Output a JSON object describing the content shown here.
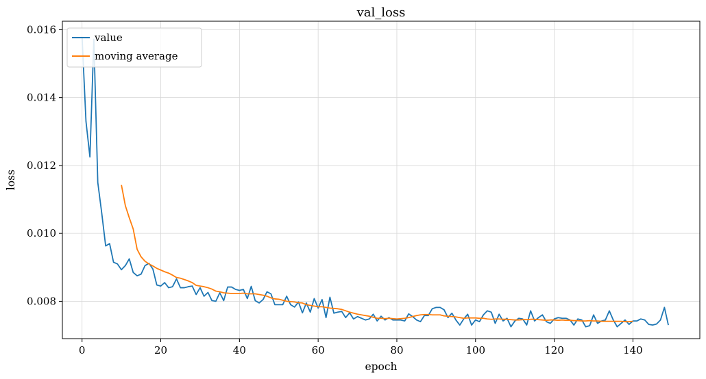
{
  "chart_data": {
    "type": "line",
    "title": "val_loss",
    "xlabel": "epoch",
    "ylabel": "loss",
    "xlim": [
      -5,
      157
    ],
    "ylim": [
      0.0069,
      0.01625
    ],
    "xticks": [
      0,
      20,
      40,
      60,
      80,
      100,
      120,
      140
    ],
    "xtick_labels": [
      "0",
      "20",
      "40",
      "60",
      "80",
      "100",
      "120",
      "140"
    ],
    "yticks": [
      0.008,
      0.01,
      0.012,
      0.014,
      0.016
    ],
    "ytick_labels": [
      "0.008",
      "0.010",
      "0.012",
      "0.014",
      "0.016"
    ],
    "grid": true,
    "legend_position": "top-left",
    "series": [
      {
        "name": "value",
        "color": "#1f77b4",
        "x_start": 0,
        "values": [
          0.0158,
          0.0133,
          0.01225,
          0.01572,
          0.0115,
          0.0106,
          0.00963,
          0.0097,
          0.00915,
          0.0091,
          0.00893,
          0.00905,
          0.00925,
          0.00885,
          0.00875,
          0.0088,
          0.00905,
          0.00912,
          0.00895,
          0.00848,
          0.00845,
          0.00855,
          0.0084,
          0.00843,
          0.00866,
          0.0084,
          0.0084,
          0.00843,
          0.00845,
          0.0082,
          0.0084,
          0.00815,
          0.00826,
          0.00802,
          0.008,
          0.00825,
          0.00802,
          0.00842,
          0.00842,
          0.00835,
          0.00832,
          0.00835,
          0.00808,
          0.00844,
          0.00802,
          0.00795,
          0.00805,
          0.00828,
          0.00822,
          0.0079,
          0.0079,
          0.0079,
          0.00815,
          0.0079,
          0.00783,
          0.00798,
          0.00766,
          0.00795,
          0.00768,
          0.00808,
          0.0078,
          0.00805,
          0.00752,
          0.00812,
          0.00765,
          0.00768,
          0.0077,
          0.00752,
          0.00766,
          0.00748,
          0.00755,
          0.0075,
          0.00745,
          0.00748,
          0.00762,
          0.00742,
          0.00756,
          0.00745,
          0.00752,
          0.00745,
          0.00745,
          0.00745,
          0.00742,
          0.00763,
          0.00755,
          0.00745,
          0.0074,
          0.00758,
          0.00758,
          0.00778,
          0.00782,
          0.00782,
          0.00775,
          0.00752,
          0.00765,
          0.00745,
          0.0073,
          0.00748,
          0.00762,
          0.0073,
          0.00745,
          0.0074,
          0.0076,
          0.00772,
          0.00768,
          0.00735,
          0.00762,
          0.00742,
          0.0075,
          0.00725,
          0.00742,
          0.0075,
          0.00748,
          0.0073,
          0.00772,
          0.00742,
          0.00752,
          0.0076,
          0.0074,
          0.00735,
          0.00748,
          0.00752,
          0.0075,
          0.0075,
          0.00745,
          0.0073,
          0.00748,
          0.00745,
          0.00725,
          0.00728,
          0.0076,
          0.00735,
          0.00742,
          0.00745,
          0.00772,
          0.00745,
          0.00725,
          0.00735,
          0.00745,
          0.00732,
          0.00742,
          0.00742,
          0.00748,
          0.00745,
          0.00732,
          0.0073,
          0.00733,
          0.00745,
          0.00782,
          0.0073
        ]
      },
      {
        "name": "moving average",
        "color": "#ff7f0e",
        "x_start": 10,
        "values": [
          0.01143,
          0.01082,
          0.01046,
          0.01013,
          0.00953,
          0.00931,
          0.00918,
          0.0091,
          0.00904,
          0.00897,
          0.00892,
          0.00887,
          0.00883,
          0.00877,
          0.0087,
          0.00868,
          0.00864,
          0.0086,
          0.00855,
          0.00847,
          0.00845,
          0.00843,
          0.0084,
          0.00836,
          0.0083,
          0.00828,
          0.00825,
          0.00824,
          0.00823,
          0.00823,
          0.00823,
          0.00824,
          0.00822,
          0.00822,
          0.00822,
          0.0082,
          0.00818,
          0.00815,
          0.0081,
          0.00807,
          0.00806,
          0.00803,
          0.008,
          0.00799,
          0.00798,
          0.00796,
          0.00795,
          0.0079,
          0.00788,
          0.00786,
          0.00784,
          0.00784,
          0.00782,
          0.0078,
          0.00779,
          0.00778,
          0.00776,
          0.00772,
          0.00768,
          0.00765,
          0.00762,
          0.0076,
          0.00758,
          0.00756,
          0.00753,
          0.0075,
          0.0075,
          0.00749,
          0.0075,
          0.00749,
          0.00748,
          0.00749,
          0.0075,
          0.00752,
          0.00755,
          0.00758,
          0.0076,
          0.00761,
          0.00761,
          0.0076,
          0.0076,
          0.0076,
          0.00757,
          0.00756,
          0.00755,
          0.00754,
          0.00752,
          0.0075,
          0.00751,
          0.00751,
          0.00751,
          0.0075,
          0.0075,
          0.00748,
          0.00747,
          0.00748,
          0.00748,
          0.00747,
          0.00747,
          0.00746,
          0.00745,
          0.00745,
          0.00746,
          0.00746,
          0.00747,
          0.00747,
          0.00746,
          0.00745,
          0.00744,
          0.00745,
          0.00745,
          0.00744,
          0.00745,
          0.00744,
          0.00744,
          0.00743,
          0.00743,
          0.00742,
          0.00742,
          0.00743,
          0.00742,
          0.00742,
          0.00741,
          0.00741,
          0.00741,
          0.00741,
          0.00741,
          0.00741,
          0.0074,
          0.0074,
          0.00741
        ]
      }
    ]
  }
}
